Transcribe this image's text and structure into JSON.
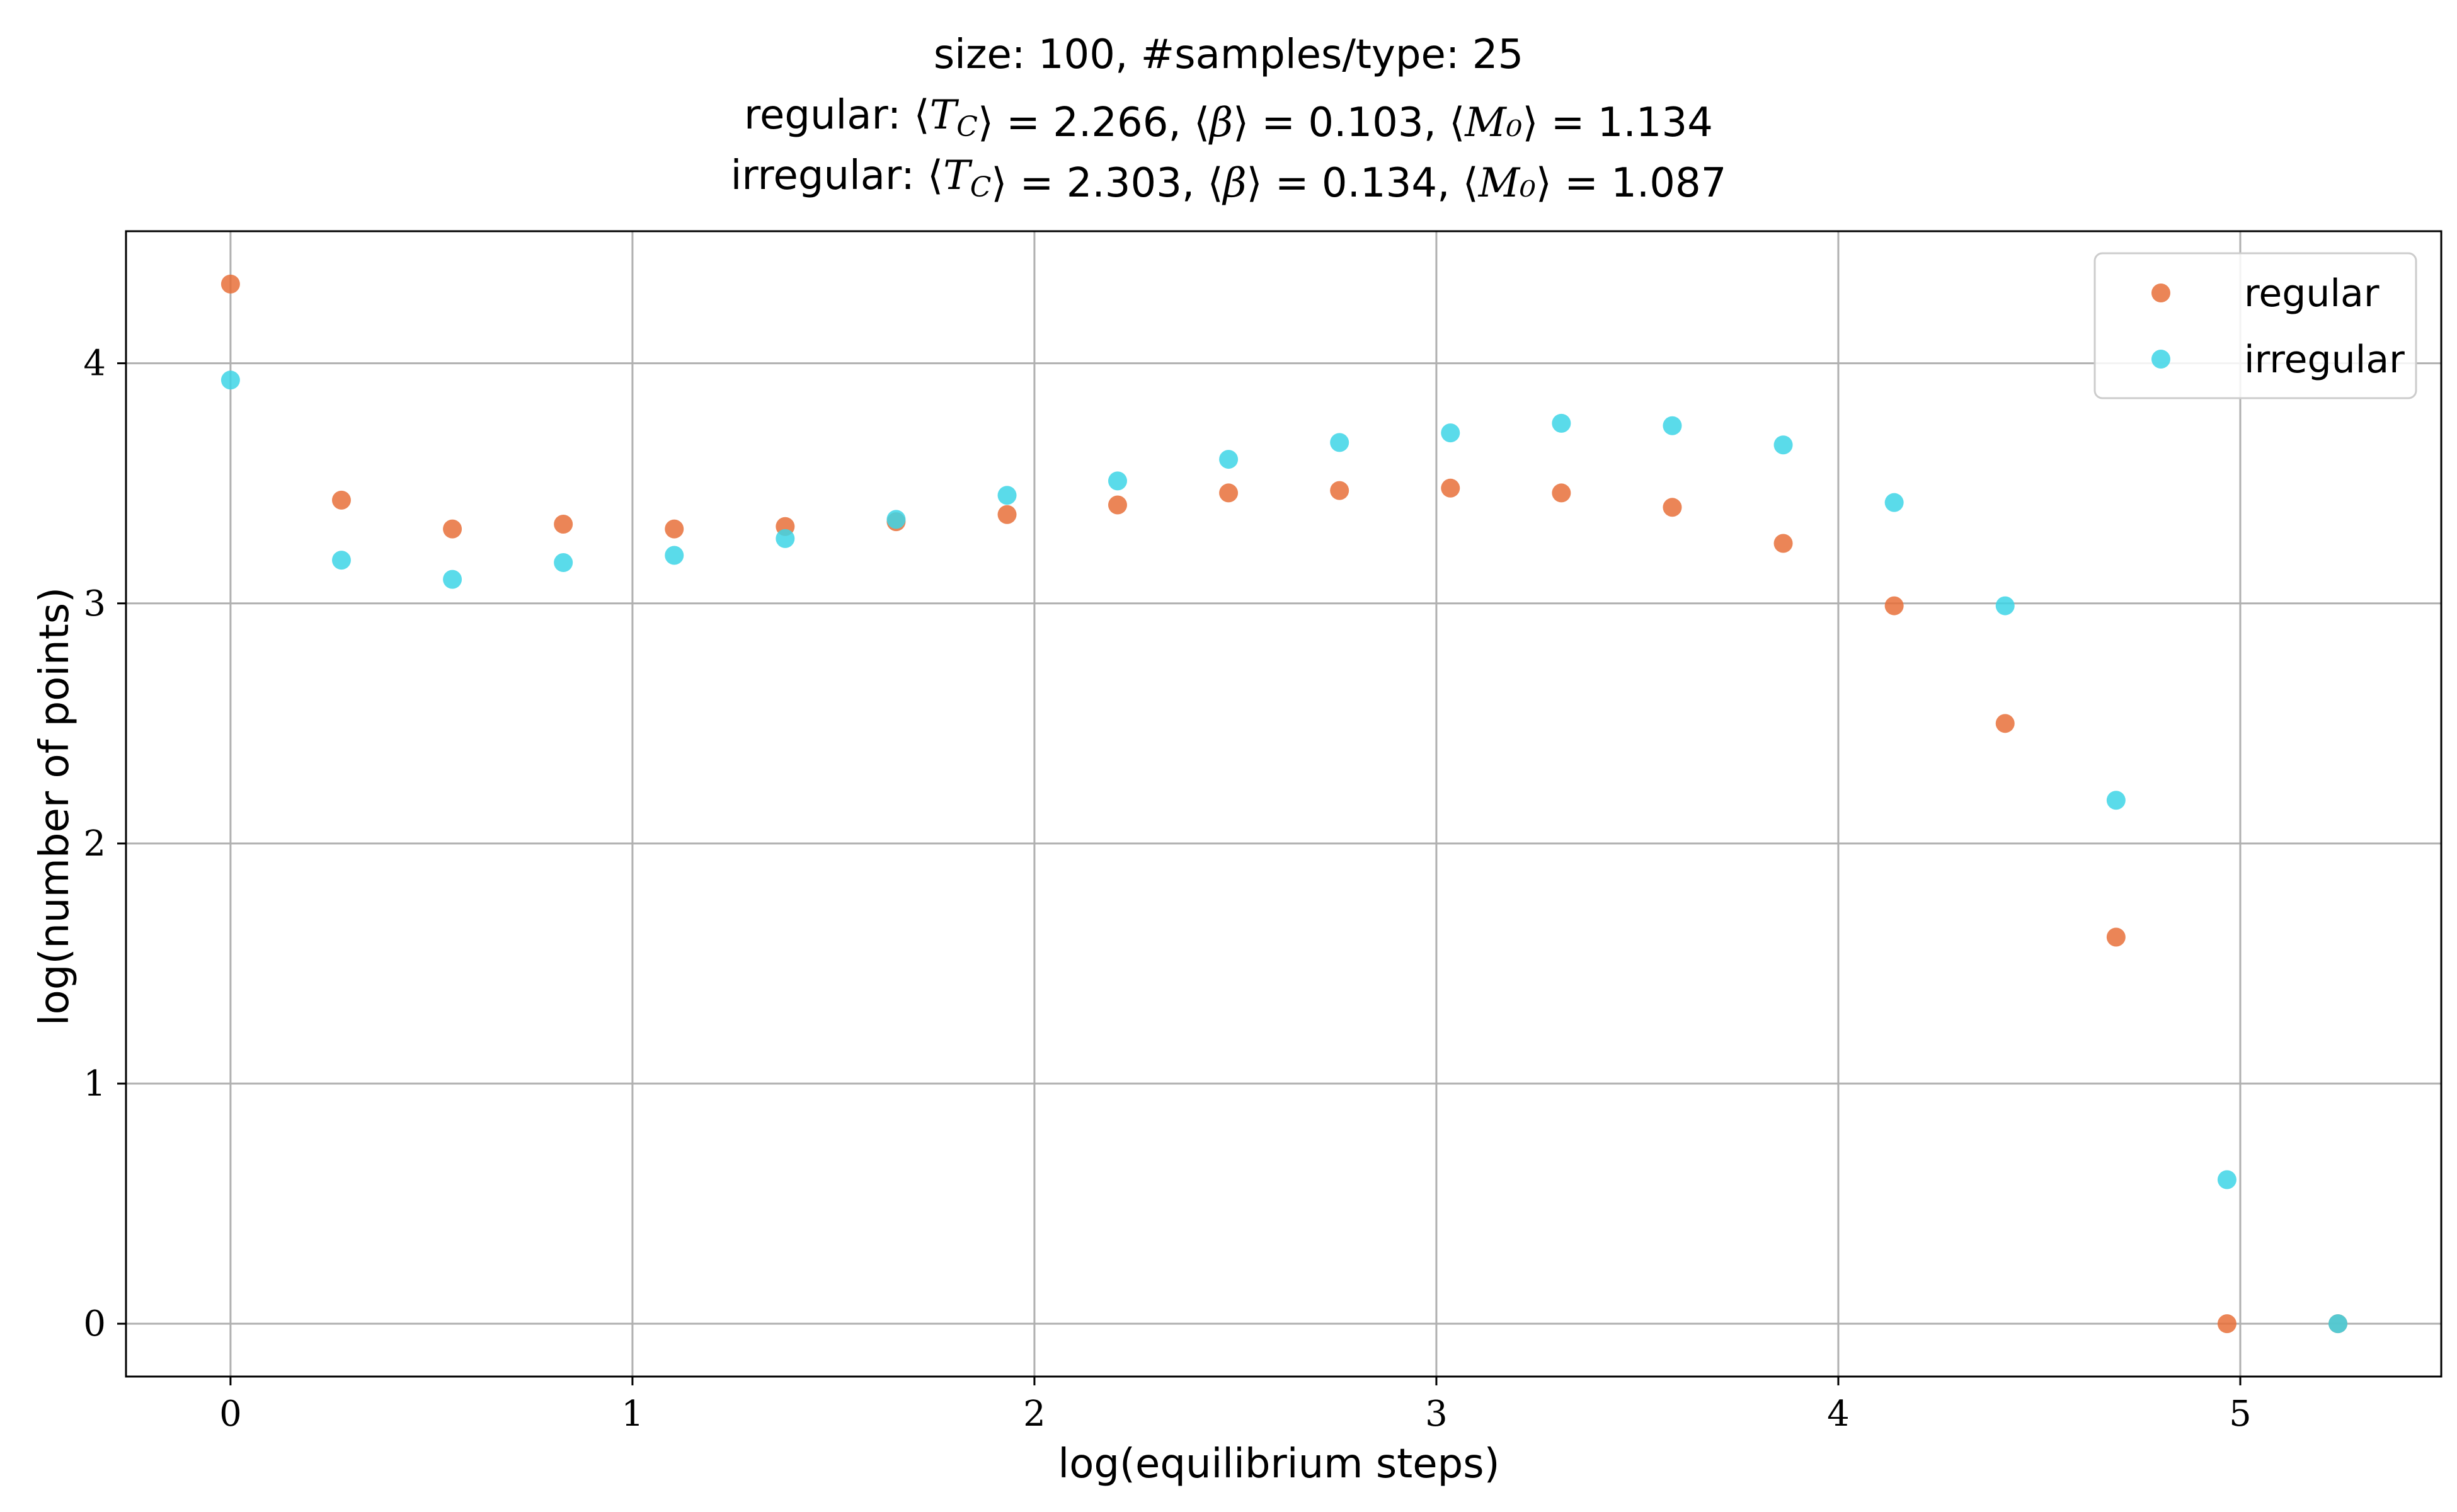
{
  "chart_data": {
    "type": "scatter",
    "title_lines": [
      "size: 100, #samples/type: 25",
      "regular: ⟨T_C⟩ = 2.266, ⟨β⟩ = 0.103, ⟨M₀⟩ = 1.134",
      "irregular: ⟨T_C⟩ = 2.303, ⟨β⟩ = 0.134, ⟨M₀⟩ = 1.087"
    ],
    "xlabel": "log(equilibrium steps)",
    "ylabel": "log(number of points)",
    "xlim": [
      -0.26,
      5.5
    ],
    "ylim": [
      -0.22,
      4.55
    ],
    "xticks": [
      0,
      1,
      2,
      3,
      4,
      5
    ],
    "yticks": [
      0,
      1,
      2,
      3,
      4
    ],
    "grid": true,
    "legend_position": "top-right",
    "series": [
      {
        "name": "regular",
        "color": "#e8703a",
        "x": [
          0,
          0.276,
          0.552,
          0.828,
          1.104,
          1.38,
          1.656,
          1.932,
          2.207,
          2.483,
          2.759,
          3.035,
          3.311,
          3.587,
          3.863,
          4.139,
          4.415,
          4.691,
          4.967
        ],
        "y": [
          4.33,
          3.43,
          3.31,
          3.33,
          3.31,
          3.32,
          3.34,
          3.37,
          3.41,
          3.46,
          3.47,
          3.48,
          3.46,
          3.4,
          3.25,
          2.99,
          2.5,
          1.61,
          0.0
        ]
      },
      {
        "name": "irregular",
        "color": "#3dd5e6",
        "x": [
          0,
          0.276,
          0.552,
          0.828,
          1.104,
          1.38,
          1.656,
          1.932,
          2.207,
          2.483,
          2.759,
          3.035,
          3.311,
          3.587,
          3.863,
          4.139,
          4.415,
          4.691,
          4.967,
          5.243
        ],
        "y": [
          3.93,
          3.18,
          3.1,
          3.17,
          3.2,
          3.27,
          3.35,
          3.45,
          3.51,
          3.6,
          3.67,
          3.71,
          3.75,
          3.74,
          3.66,
          3.42,
          2.99,
          2.18,
          0.6,
          0.0
        ]
      }
    ],
    "extra_points": [
      {
        "series": "regular",
        "x": 5.243,
        "y": 0.0
      }
    ]
  }
}
